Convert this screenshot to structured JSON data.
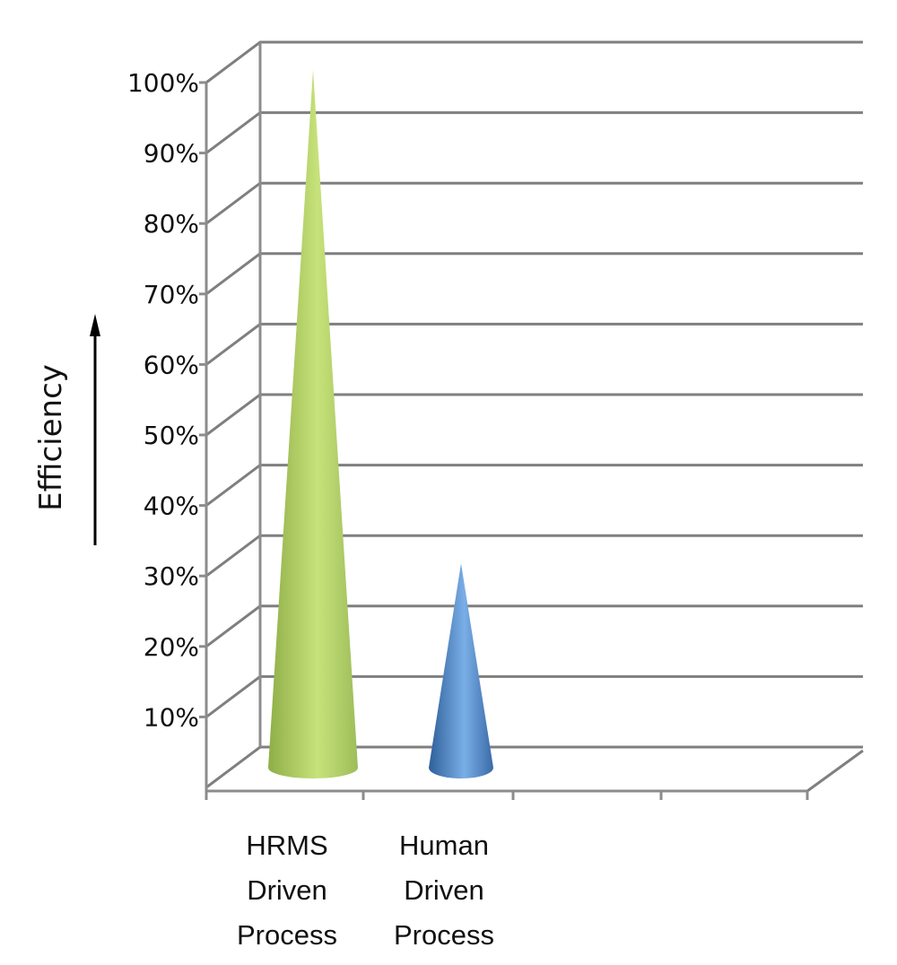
{
  "chart_data": {
    "type": "bar",
    "style": "3d-cone",
    "categories": [
      "HRMS\nDriven\nProcess",
      "Human\nDriven\nProcess"
    ],
    "series": [
      {
        "values": [
          100,
          30
        ]
      }
    ],
    "ylabel": "Efficiency",
    "ylim": [
      0,
      100
    ],
    "yticks": [
      "10%",
      "20%",
      "30%",
      "40%",
      "50%",
      "60%",
      "70%",
      "80%",
      "90%",
      "100%"
    ],
    "grid": true,
    "legend": "none",
    "colors": [
      "#9bbb59",
      "#4f81bd"
    ]
  }
}
